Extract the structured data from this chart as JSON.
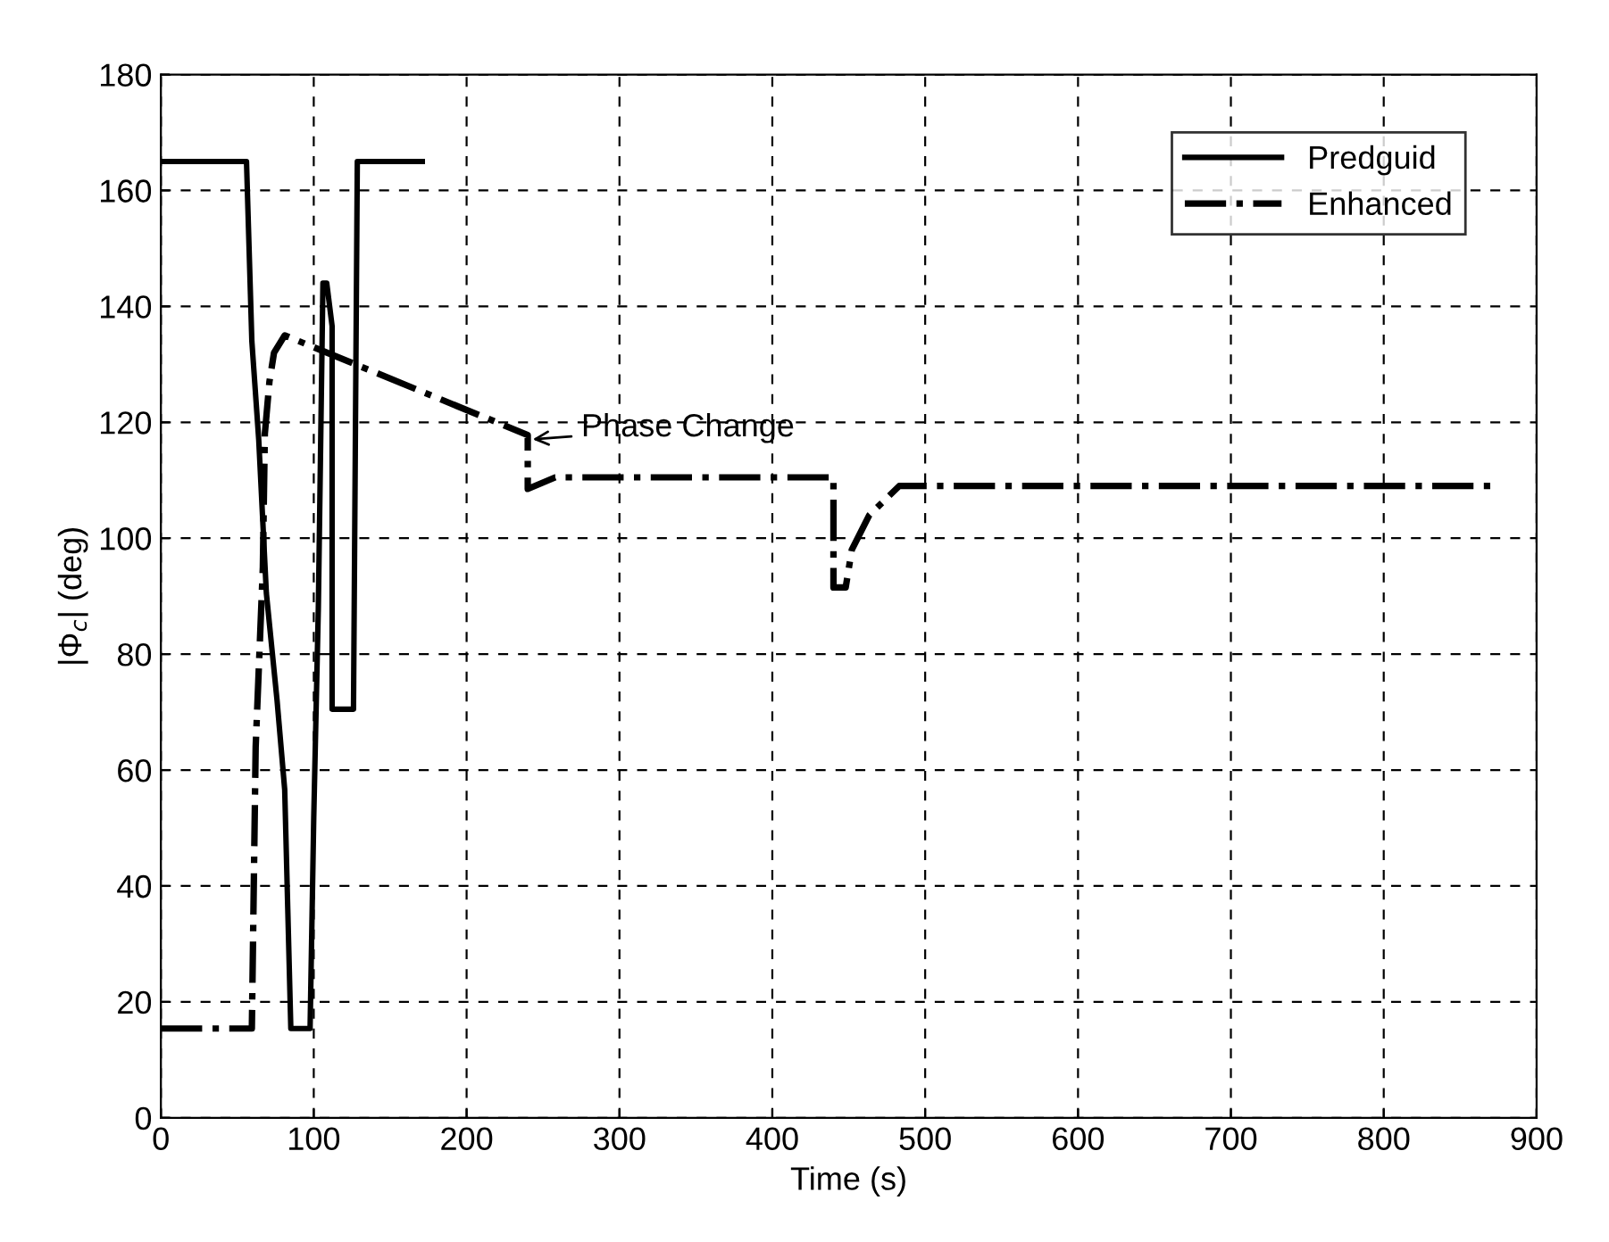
{
  "chart_data": {
    "type": "line",
    "xlabel": "Time (s)",
    "ylabel": "|Φ$_{c}$| (deg)",
    "xlim": [
      0,
      900
    ],
    "ylim": [
      0,
      180
    ],
    "xticks": [
      0,
      100,
      200,
      300,
      400,
      500,
      600,
      700,
      800,
      900
    ],
    "yticks": [
      0,
      20,
      40,
      60,
      80,
      100,
      120,
      140,
      160,
      180
    ],
    "grid": true,
    "legend": "top right",
    "series": [
      {
        "name": "Predguid",
        "color": "#000000",
        "line_style": "solid",
        "x": [
          0,
          56,
          59.5,
          64,
          69,
          76,
          81,
          83,
          85,
          97.6,
          100,
          103,
          106,
          108.5,
          112,
          112,
          126,
          128.5,
          171
        ],
        "values": [
          165,
          165,
          134,
          117,
          90.5,
          72,
          56.6,
          36,
          15.4,
          15.4,
          51.8,
          88,
          144,
          144,
          136.6,
          70.5,
          70.5,
          165,
          165
        ]
      },
      {
        "name": "Enhanced",
        "color": "#000000",
        "line_style": "dashdot",
        "x": [
          0,
          59.5,
          62,
          66.7,
          68,
          71,
          74,
          81,
          240,
          240,
          258,
          440,
          440,
          448,
          452,
          463.5,
          483,
          875
        ],
        "values": [
          15.4,
          15.4,
          64,
          95,
          118,
          127,
          132,
          135,
          117.8,
          108.5,
          110.5,
          110.5,
          91.5,
          91.5,
          98,
          104,
          109,
          109
        ]
      }
    ],
    "annotations": [
      {
        "text": "Phase Change",
        "x": 240,
        "y": 117
      }
    ]
  }
}
